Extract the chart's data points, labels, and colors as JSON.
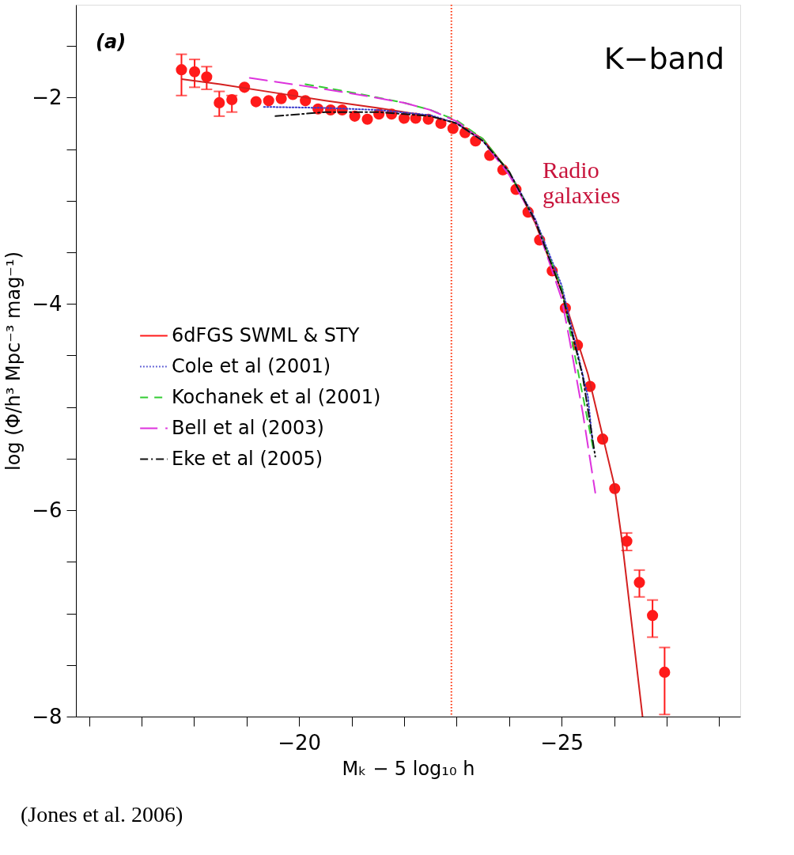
{
  "chart_data": {
    "type": "line",
    "xlabel": "Mₖ − 5 log₁₀ h",
    "ylabel": "log (Φ/h³ Mpc⁻³ mag⁻¹)",
    "xlim": [
      -15.75,
      -28.4
    ],
    "ylim": [
      -8,
      -1.1
    ],
    "xticks": [
      {
        "value": -16,
        "label": null
      },
      {
        "value": -17,
        "label": null
      },
      {
        "value": -18,
        "label": null
      },
      {
        "value": -19,
        "label": null
      },
      -20,
      {
        "value": -21,
        "label": null
      },
      {
        "value": -22,
        "label": null
      },
      {
        "value": -23,
        "label": null
      },
      {
        "value": -24,
        "label": null
      },
      -25,
      {
        "value": -26,
        "label": null
      },
      {
        "value": -27,
        "label": null
      },
      {
        "value": -28,
        "label": null
      }
    ],
    "yticks": [
      {
        "value": -1.5,
        "label": null
      },
      -2,
      {
        "value": -2.5,
        "label": null
      },
      {
        "value": -3,
        "label": null
      },
      {
        "value": -3.5,
        "label": null
      },
      -4,
      {
        "value": -4.5,
        "label": null
      },
      {
        "value": -5,
        "label": null
      },
      {
        "value": -5.5,
        "label": null
      },
      -6,
      {
        "value": -6.5,
        "label": null
      },
      {
        "value": -7,
        "label": null
      },
      {
        "value": -7.5,
        "label": null
      },
      -8
    ],
    "grid": false,
    "legend": "left",
    "ref_lines": [
      {
        "axis": "x",
        "value": -22.9,
        "color": "#ff2a00",
        "line_style": "dotted"
      }
    ],
    "annotations": [
      "(a)",
      "K−band",
      "Radio galaxies",
      "(Jones et al. 2006)"
    ],
    "series": [
      {
        "name": "6dFGS SWML & STY",
        "type": "scatter",
        "marker": "circle",
        "color": "#ff1a1a",
        "x": [
          -17.76,
          -18.01,
          -18.24,
          -18.48,
          -18.72,
          -18.96,
          -19.18,
          -19.42,
          -19.66,
          -19.88,
          -20.12,
          -20.36,
          -20.6,
          -20.82,
          -21.06,
          -21.3,
          -21.52,
          -21.76,
          -22.0,
          -22.22,
          -22.46,
          -22.7,
          -22.93,
          -23.16,
          -23.36,
          -23.63,
          -23.88,
          -24.13,
          -24.36,
          -24.58,
          -24.82,
          -25.07,
          -25.3,
          -25.54,
          -25.78,
          -26.01,
          -26.24,
          -26.48,
          -26.73,
          -26.96
        ],
        "values": [
          -1.73,
          -1.75,
          -1.8,
          -2.05,
          -2.02,
          -1.9,
          -2.04,
          -2.03,
          -2.01,
          -1.97,
          -2.03,
          -2.11,
          -2.12,
          -2.12,
          -2.18,
          -2.21,
          -2.16,
          -2.16,
          -2.2,
          -2.2,
          -2.21,
          -2.25,
          -2.3,
          -2.34,
          -2.42,
          -2.56,
          -2.7,
          -2.89,
          -3.11,
          -3.38,
          -3.68,
          -4.04,
          -4.4,
          -4.8,
          -5.31,
          -5.79,
          -6.3,
          -6.7,
          -7.02,
          -7.57
        ],
        "errors": [
          [
            -1.98,
            -1.58
          ],
          [
            -1.9,
            -1.63
          ],
          [
            -1.92,
            -1.7
          ],
          [
            -2.18,
            -1.94
          ],
          [
            -2.14,
            -1.98
          ],
          null,
          null,
          null,
          null,
          null,
          null,
          null,
          null,
          null,
          null,
          null,
          null,
          null,
          null,
          null,
          null,
          null,
          null,
          null,
          null,
          null,
          null,
          null,
          null,
          null,
          null,
          null,
          null,
          null,
          null,
          null,
          [
            -6.39,
            -6.22
          ],
          [
            -6.84,
            -6.58
          ],
          [
            -7.23,
            -6.87
          ],
          [
            -7.98,
            -7.33
          ]
        ]
      },
      {
        "line_style": "solid",
        "color": "#d42020",
        "x": [
          -17.76,
          -18.5,
          -19.5,
          -20.5,
          -21.5,
          -22.5,
          -23.0,
          -23.5,
          -24.0,
          -24.5,
          -25.0,
          -25.5,
          -26.0,
          -26.15,
          -26.54
        ],
        "values": [
          -1.82,
          -1.87,
          -1.95,
          -2.03,
          -2.1,
          -2.18,
          -2.25,
          -2.4,
          -2.72,
          -3.22,
          -3.88,
          -4.68,
          -5.75,
          -6.3,
          -8.0
        ]
      },
      {
        "name": "Cole et al (2001)",
        "line_style": "dotted",
        "color": "#3a3acc",
        "x": [
          -19.33,
          -20.5,
          -21.5,
          -22.5,
          -23.0,
          -23.5,
          -24.0,
          -24.5,
          -25.0,
          -25.5,
          -25.6
        ],
        "values": [
          -2.09,
          -2.1,
          -2.12,
          -2.17,
          -2.25,
          -2.42,
          -2.72,
          -3.18,
          -3.82,
          -4.9,
          -5.4
        ]
      },
      {
        "name": "Kochanek et al (2001)",
        "line_style": "dashed",
        "color": "#33cc33",
        "x": [
          -20.12,
          -21.0,
          -22.0,
          -22.5,
          -23.0,
          -23.5,
          -24.0,
          -24.5,
          -25.0,
          -25.6
        ],
        "values": [
          -1.87,
          -1.95,
          -2.05,
          -2.12,
          -2.22,
          -2.4,
          -2.72,
          -3.2,
          -3.85,
          -5.4
        ]
      },
      {
        "name": "Bell et al (2003)",
        "line_style": "longdash",
        "color": "#dd33dd",
        "x": [
          -19.06,
          -20.0,
          -21.0,
          -22.0,
          -22.5,
          -23.0,
          -23.5,
          -24.0,
          -24.5,
          -25.0,
          -25.15,
          -25.4,
          -25.64
        ],
        "values": [
          -1.81,
          -1.88,
          -1.96,
          -2.05,
          -2.12,
          -2.23,
          -2.42,
          -2.75,
          -3.2,
          -3.95,
          -4.35,
          -5.05,
          -5.83
        ]
      },
      {
        "name": "Eke et al (2005)",
        "line_style": "dashdot",
        "color": "#111111",
        "x": [
          -19.55,
          -20.5,
          -21.5,
          -22.5,
          -23.0,
          -23.5,
          -24.0,
          -24.5,
          -25.0,
          -25.4,
          -25.64
        ],
        "values": [
          -2.18,
          -2.14,
          -2.14,
          -2.18,
          -2.25,
          -2.42,
          -2.72,
          -3.2,
          -3.88,
          -4.7,
          -5.48
        ]
      }
    ]
  }
}
